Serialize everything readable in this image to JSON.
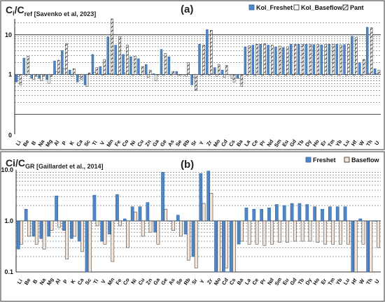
{
  "chart_data": [
    {
      "type": "bar",
      "panel_label": "(a)",
      "ylabel_main": "C",
      "ylabel_sub_i": "i",
      "ylabel_slash": "/C",
      "ylabel_sub_ref": "ref [Savenko et al, 2023]",
      "yscale": "log",
      "ylim": [
        0,
        30
      ],
      "y_ticks": [
        "0",
        "1",
        "10"
      ],
      "grid": true,
      "legend_position": "top-right",
      "categories": [
        "Li",
        "Be",
        "B",
        "Na",
        "Mg",
        "Al",
        "P",
        "K",
        "Ca",
        "Sc",
        "Ti",
        "V",
        "Mn",
        "Fe",
        "Co",
        "Ni",
        "Cu",
        "Zn",
        "Ga",
        "Ge",
        "As",
        "Se",
        "Rb",
        "Sr",
        "Y",
        "Zr",
        "Mo",
        "Cd",
        "Cs",
        "Ba",
        "La",
        "Ce",
        "Pr",
        "Nd",
        "Sm",
        "Eu",
        "Gd",
        "Tb",
        "Dy",
        "Ho",
        "Er",
        "Tm",
        "Yb",
        "Lu",
        "Hf",
        "W",
        "Th",
        "U"
      ],
      "series": [
        {
          "name": "Kol_Freshet",
          "color": "#4f86c6",
          "pattern": "solid",
          "values": [
            0.65,
            2.6,
            0.8,
            0.8,
            0.75,
            2.2,
            4.0,
            1.3,
            0.65,
            0.55,
            3.2,
            1.6,
            8.8,
            5.5,
            3.2,
            2.8,
            2.5,
            1.8,
            1.05,
            4.3,
            2.8,
            1.2,
            1.0,
            0.55,
            5.8,
            13.5,
            1.5,
            1.3,
            1.0,
            0.8,
            5.0,
            5.5,
            5.8,
            5.5,
            5.0,
            4.8,
            5.8,
            5.8,
            5.8,
            5.7,
            5.6,
            5.8,
            5.8,
            5.7,
            9.2,
            2.0,
            15.5,
            1.4
          ]
        },
        {
          "name": "Kol_Baseflow",
          "color": "#ffffff",
          "pattern": "outline",
          "values": [
            0.9,
            0.95,
            0.75,
            0.7,
            0.6,
            1.2,
            1.4,
            0.9,
            0.9,
            0.5,
            1.15,
            1.0,
            1.05,
            1.0,
            1.1,
            1.0,
            1.0,
            0.85,
            0.7,
            0.95,
            1.0,
            0.95,
            0.9,
            0.85,
            0.95,
            1.0,
            0.9,
            0.85,
            0.8,
            0.8,
            0.95,
            0.95,
            0.95,
            0.95,
            0.95,
            0.95,
            0.95,
            0.95,
            0.95,
            0.95,
            0.95,
            0.95,
            0.95,
            0.95,
            0.95,
            0.95,
            1.05,
            1.05
          ]
        },
        {
          "name": "Pant",
          "color": "#ffffff",
          "pattern": "hatched",
          "values": [
            0.55,
            2.9,
            0.9,
            0.9,
            0.9,
            2.3,
            6.0,
            1.4,
            0.75,
            1.1,
            1.5,
            2.4,
            28.0,
            9.0,
            5.5,
            2.9,
            1.6,
            1.3,
            1.0,
            3.4,
            1.2,
            1.0,
            2.0,
            0.4,
            5.5,
            13.0,
            1.8,
            1.7,
            0.65,
            0.5,
            5.3,
            5.8,
            6.0,
            5.5,
            5.2,
            5.0,
            5.8,
            5.8,
            5.8,
            5.8,
            5.8,
            5.8,
            5.6,
            5.8,
            8.5,
            2.4,
            15.0,
            1.3
          ]
        }
      ]
    },
    {
      "type": "bar",
      "panel_label": "(b)",
      "ylabel_main": "Ci/C",
      "ylabel_sub_gr": "GR [Gaillardet et al., 2014]",
      "yscale": "log",
      "ylim": [
        0.1,
        10
      ],
      "y_ticks": [
        "0.1",
        "1.0",
        "10.0"
      ],
      "grid": true,
      "legend_position": "top-right",
      "categories": [
        "Li",
        "Be",
        "B",
        "Na",
        "Mg",
        "Al",
        "P",
        "K",
        "Ca",
        "Sc",
        "Ti",
        "V",
        "Mn",
        "Fe",
        "Co",
        "Ni",
        "Cu",
        "Zn",
        "Ga",
        "Ge",
        "As",
        "Se",
        "Rb",
        "Sr",
        "Y",
        "Zr",
        "Mo",
        "Cd",
        "Cs",
        "Ba",
        "La",
        "Ce",
        "Pr",
        "Nd",
        "Sm",
        "Eu",
        "Gd",
        "Tb",
        "Dy",
        "Ho",
        "Er",
        "Tm",
        "Yb",
        "Lu",
        "Hf",
        "W",
        "Th",
        "U"
      ],
      "series": [
        {
          "name": "Freshet",
          "color": "#4f86c6",
          "pattern": "solid",
          "values": [
            0.28,
            1.7,
            0.5,
            0.45,
            0.5,
            3.1,
            0.65,
            0.45,
            0.4,
            0.1,
            3.2,
            0.4,
            0.55,
            3.3,
            1.1,
            1.9,
            1.9,
            2.3,
            0.6,
            9.0,
            1.0,
            1.3,
            0.55,
            0.2,
            8.5,
            9.5,
            0.1,
            0.1,
            0.1,
            0.35,
            1.8,
            1.7,
            1.7,
            1.8,
            2.1,
            2.0,
            2.2,
            2.2,
            2.1,
            1.9,
            1.7,
            1.9,
            1.9,
            1.9,
            0.1,
            1.1,
            0.1,
            1.0
          ]
        },
        {
          "name": "Baseflow",
          "color": "#f2e4d8",
          "pattern": "outline",
          "values": [
            0.35,
            0.5,
            0.35,
            0.28,
            0.65,
            0.75,
            0.18,
            0.5,
            0.25,
            0.1,
            0.8,
            0.35,
            0.16,
            0.8,
            0.3,
            1.5,
            0.5,
            0.6,
            0.35,
            1.7,
            0.65,
            0.5,
            0.17,
            0.12,
            2.2,
            3.5,
            0.1,
            0.12,
            0.1,
            0.4,
            0.35,
            0.35,
            0.33,
            0.35,
            0.38,
            0.38,
            0.4,
            0.4,
            0.4,
            0.38,
            0.35,
            0.35,
            0.35,
            0.35,
            0.1,
            0.35,
            0.1,
            0.3
          ]
        }
      ]
    }
  ]
}
